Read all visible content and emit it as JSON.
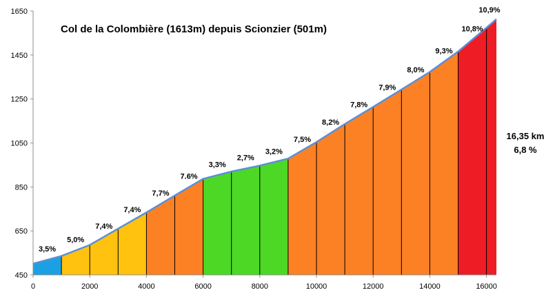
{
  "chart_data": {
    "type": "area",
    "title": "Col de la Colombière (1613m) depuis Scionzier (501m)",
    "xlabel": "",
    "ylabel": "",
    "xlim": [
      0,
      16350
    ],
    "ylim": [
      450,
      1650
    ],
    "x_ticks": [
      "0",
      "2000",
      "4000",
      "6000",
      "8000",
      "10000",
      "12000",
      "14000",
      "16000"
    ],
    "y_ticks": [
      "450",
      "650",
      "850",
      "1050",
      "1250",
      "1450",
      "1650"
    ],
    "grid": false,
    "colors": {
      "segment_blue": "#1ba1e2",
      "segment_yellow": "#ffc20e",
      "segment_orange": "#fb8124",
      "segment_green": "#4cd824",
      "segment_red": "#ee1c25",
      "profile_line": "#5b8fd6",
      "border": "#8c8c8c"
    },
    "segments": [
      {
        "start": 0,
        "end": 1000,
        "grade": "3,5%",
        "color": "segment_blue"
      },
      {
        "start": 1000,
        "end": 2000,
        "grade": "5,0%",
        "color": "segment_yellow"
      },
      {
        "start": 2000,
        "end": 3000,
        "grade": "7,4%",
        "color": "segment_yellow"
      },
      {
        "start": 3000,
        "end": 4000,
        "grade": "7,4%",
        "color": "segment_yellow"
      },
      {
        "start": 4000,
        "end": 5000,
        "grade": "7,7%",
        "color": "segment_orange"
      },
      {
        "start": 5000,
        "end": 6000,
        "grade": "7.6%",
        "color": "segment_orange"
      },
      {
        "start": 6000,
        "end": 7000,
        "grade": "3,3%",
        "color": "segment_green"
      },
      {
        "start": 7000,
        "end": 8000,
        "grade": "2,7%",
        "color": "segment_green"
      },
      {
        "start": 8000,
        "end": 9000,
        "grade": "3,2%",
        "color": "segment_green"
      },
      {
        "start": 9000,
        "end": 10000,
        "grade": "7,5%",
        "color": "segment_orange"
      },
      {
        "start": 10000,
        "end": 11000,
        "grade": "8,2%",
        "color": "segment_orange"
      },
      {
        "start": 11000,
        "end": 12000,
        "grade": "7,8%",
        "color": "segment_orange"
      },
      {
        "start": 12000,
        "end": 13000,
        "grade": "7,9%",
        "color": "segment_orange"
      },
      {
        "start": 13000,
        "end": 14000,
        "grade": "8,0%",
        "color": "segment_orange"
      },
      {
        "start": 14000,
        "end": 15000,
        "grade": "9,3%",
        "color": "segment_orange"
      },
      {
        "start": 15000,
        "end": 16000,
        "grade": "10,8%",
        "color": "segment_red"
      },
      {
        "start": 16000,
        "end": 16350,
        "grade": "10,9%",
        "color": "segment_red"
      }
    ],
    "profile": {
      "x": [
        0,
        1000,
        2000,
        3000,
        4000,
        5000,
        6000,
        7000,
        8000,
        9000,
        10000,
        11000,
        12000,
        13000,
        14000,
        15000,
        16000,
        16350
      ],
      "y": [
        501,
        536,
        586,
        660,
        734,
        811,
        887,
        920,
        947,
        979,
        1054,
        1136,
        1214,
        1293,
        1373,
        1466,
        1574,
        1613
      ]
    },
    "summary": {
      "distance": "16,35 km",
      "average": "6,8 %"
    }
  }
}
